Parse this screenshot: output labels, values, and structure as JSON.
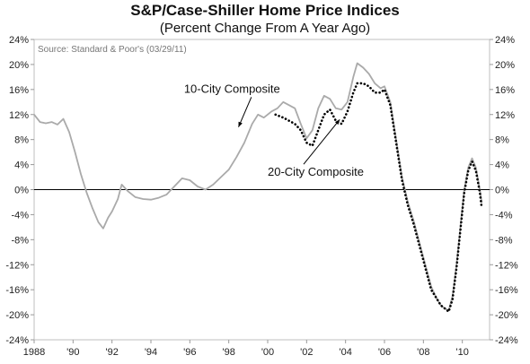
{
  "chart_data": {
    "type": "line",
    "title": "S&P/Case-Shiller Home Price Indices",
    "subtitle": "(Percent Change From A Year Ago)",
    "source": "Source: Standard & Poor's (03/29/11)",
    "ylim": [
      -24,
      24
    ],
    "yticks": [
      "24%",
      "20%",
      "16%",
      "12%",
      "8%",
      "4%",
      "0%",
      "-4%",
      "-8%",
      "-12%",
      "-16%",
      "-20%",
      "-24%"
    ],
    "xlim": [
      1988,
      2011.4
    ],
    "xticks": [
      {
        "value": 1988,
        "label": "1988"
      },
      {
        "value": 1990,
        "label": "'90"
      },
      {
        "value": 1992,
        "label": "'92"
      },
      {
        "value": 1994,
        "label": "'94"
      },
      {
        "value": 1996,
        "label": "'96"
      },
      {
        "value": 1998,
        "label": "'98"
      },
      {
        "value": 2000,
        "label": "'00"
      },
      {
        "value": 2002,
        "label": "'02"
      },
      {
        "value": 2004,
        "label": "'04"
      },
      {
        "value": 2006,
        "label": "'06"
      },
      {
        "value": 2008,
        "label": "'08"
      },
      {
        "value": 2010,
        "label": "'10"
      }
    ],
    "grid": false,
    "series": [
      {
        "name": "10-City Composite",
        "color": "#aaaaaa",
        "style": "solid",
        "x": [
          1988.0,
          1988.3,
          1988.6,
          1988.9,
          1989.2,
          1989.5,
          1989.8,
          1990.1,
          1990.4,
          1990.7,
          1991.0,
          1991.3,
          1991.55,
          1991.8,
          1992.0,
          1992.3,
          1992.5,
          1992.8,
          1993.2,
          1993.6,
          1994.0,
          1994.4,
          1994.8,
          1995.2,
          1995.6,
          1996.0,
          1996.4,
          1996.8,
          1997.2,
          1997.6,
          1998.0,
          1998.4,
          1998.8,
          1999.2,
          1999.5,
          1999.8,
          2000.2,
          2000.5,
          2000.8,
          2001.1,
          2001.4,
          2001.7,
          2002.0,
          2002.3,
          2002.6,
          2002.9,
          2003.2,
          2003.5,
          2003.8,
          2004.1,
          2004.4,
          2004.6,
          2004.9,
          2005.2,
          2005.5,
          2005.8,
          2006.0,
          2006.3,
          2006.6,
          2006.9,
          2007.2,
          2007.5,
          2007.8,
          2008.1,
          2008.4,
          2008.7,
          2008.9,
          2009.1,
          2009.3,
          2009.5,
          2009.7,
          2009.9,
          2010.1,
          2010.3,
          2010.5,
          2010.7,
          2010.9,
          2011.0
        ],
        "values": [
          12.0,
          10.8,
          10.6,
          10.8,
          10.4,
          11.3,
          9.2,
          6.0,
          2.5,
          -0.5,
          -3.0,
          -5.2,
          -6.2,
          -4.5,
          -3.5,
          -1.5,
          0.8,
          -0.2,
          -1.2,
          -1.5,
          -1.6,
          -1.3,
          -0.8,
          0.5,
          1.8,
          1.5,
          0.5,
          0.0,
          0.8,
          2.0,
          3.2,
          5.2,
          7.5,
          10.5,
          12.0,
          11.5,
          12.5,
          13.0,
          14.0,
          13.5,
          13.0,
          10.5,
          8.2,
          9.5,
          13.0,
          15.0,
          14.5,
          13.0,
          12.8,
          14.0,
          18.0,
          20.2,
          19.5,
          18.5,
          17.0,
          16.2,
          16.5,
          14.0,
          8.0,
          2.0,
          -2.0,
          -5.0,
          -8.5,
          -12.0,
          -15.5,
          -17.5,
          -18.5,
          -19.0,
          -19.3,
          -17.0,
          -12.0,
          -6.0,
          0.0,
          3.5,
          5.0,
          3.5,
          0.0,
          -2.0
        ]
      },
      {
        "name": "20-City Composite",
        "color": "#000000",
        "style": "dotted",
        "x": [
          2000.4,
          2000.8,
          2001.1,
          2001.4,
          2001.7,
          2002.0,
          2002.3,
          2002.6,
          2002.9,
          2003.2,
          2003.5,
          2003.8,
          2004.1,
          2004.4,
          2004.6,
          2004.9,
          2005.2,
          2005.5,
          2005.8,
          2006.0,
          2006.3,
          2006.6,
          2006.9,
          2007.2,
          2007.5,
          2007.8,
          2008.1,
          2008.4,
          2008.7,
          2008.9,
          2009.1,
          2009.3,
          2009.5,
          2009.7,
          2009.9,
          2010.1,
          2010.3,
          2010.5,
          2010.7,
          2010.9,
          2011.0
        ],
        "values": [
          12.0,
          11.5,
          11.0,
          10.5,
          9.5,
          7.5,
          7.0,
          9.5,
          12.0,
          12.8,
          11.0,
          10.5,
          12.5,
          15.5,
          17.0,
          17.0,
          16.5,
          15.5,
          15.5,
          16.0,
          13.5,
          7.5,
          1.5,
          -2.5,
          -5.5,
          -9.0,
          -12.5,
          -16.0,
          -17.5,
          -18.5,
          -19.0,
          -19.5,
          -17.5,
          -12.5,
          -6.5,
          -0.5,
          3.0,
          4.5,
          3.0,
          -0.5,
          -3.0
        ]
      }
    ],
    "annotations": [
      {
        "text": "10-City Composite",
        "x": 1995.7,
        "y": 15.5,
        "arrow_to_x": 1998.5,
        "arrow_to_y": 10.0
      },
      {
        "text": "20-City Composite",
        "x": 2000.0,
        "y": 2.2,
        "arrow_to_x": 2003.7,
        "arrow_to_y": 11.2
      }
    ]
  }
}
